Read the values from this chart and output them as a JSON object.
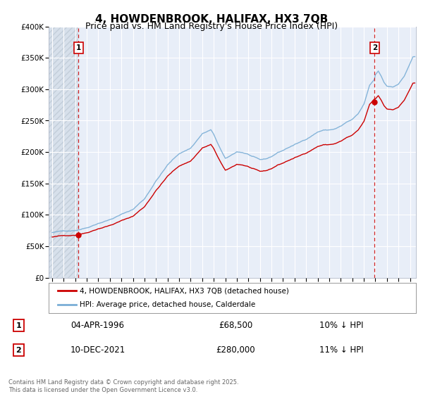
{
  "title": "4, HOWDENBROOK, HALIFAX, HX3 7QB",
  "subtitle": "Price paid vs. HM Land Registry's House Price Index (HPI)",
  "title_fontsize": 11,
  "subtitle_fontsize": 9,
  "background_color": "#ffffff",
  "plot_bg_color": "#e8eef8",
  "grid_color": "#ffffff",
  "red_color": "#cc0000",
  "blue_color": "#7aaed6",
  "hatch_color": "#c8d0dc",
  "xlabel": "",
  "ylabel": "",
  "ylim": [
    0,
    400000
  ],
  "yticks": [
    0,
    50000,
    100000,
    150000,
    200000,
    250000,
    300000,
    350000,
    400000
  ],
  "ytick_labels": [
    "£0",
    "£50K",
    "£100K",
    "£150K",
    "£200K",
    "£250K",
    "£300K",
    "£350K",
    "£400K"
  ],
  "xlim_start": 1993.7,
  "xlim_end": 2025.5,
  "xticks": [
    1994,
    1995,
    1996,
    1997,
    1998,
    1999,
    2000,
    2001,
    2002,
    2003,
    2004,
    2005,
    2006,
    2007,
    2008,
    2009,
    2010,
    2011,
    2012,
    2013,
    2014,
    2015,
    2016,
    2017,
    2018,
    2019,
    2020,
    2021,
    2022,
    2023,
    2024,
    2025
  ],
  "marker1_x": 1996.27,
  "marker1_y": 68500,
  "marker1_label": "1",
  "marker1_date": "04-APR-1996",
  "marker1_price": "£68,500",
  "marker1_hpi": "10% ↓ HPI",
  "marker2_x": 2021.94,
  "marker2_y": 280000,
  "marker2_label": "2",
  "marker2_date": "10-DEC-2021",
  "marker2_price": "£280,000",
  "marker2_hpi": "11% ↓ HPI",
  "legend_line1": "4, HOWDENBROOK, HALIFAX, HX3 7QB (detached house)",
  "legend_line2": "HPI: Average price, detached house, Calderdale",
  "footer": "Contains HM Land Registry data © Crown copyright and database right 2025.\nThis data is licensed under the Open Government Licence v3.0."
}
